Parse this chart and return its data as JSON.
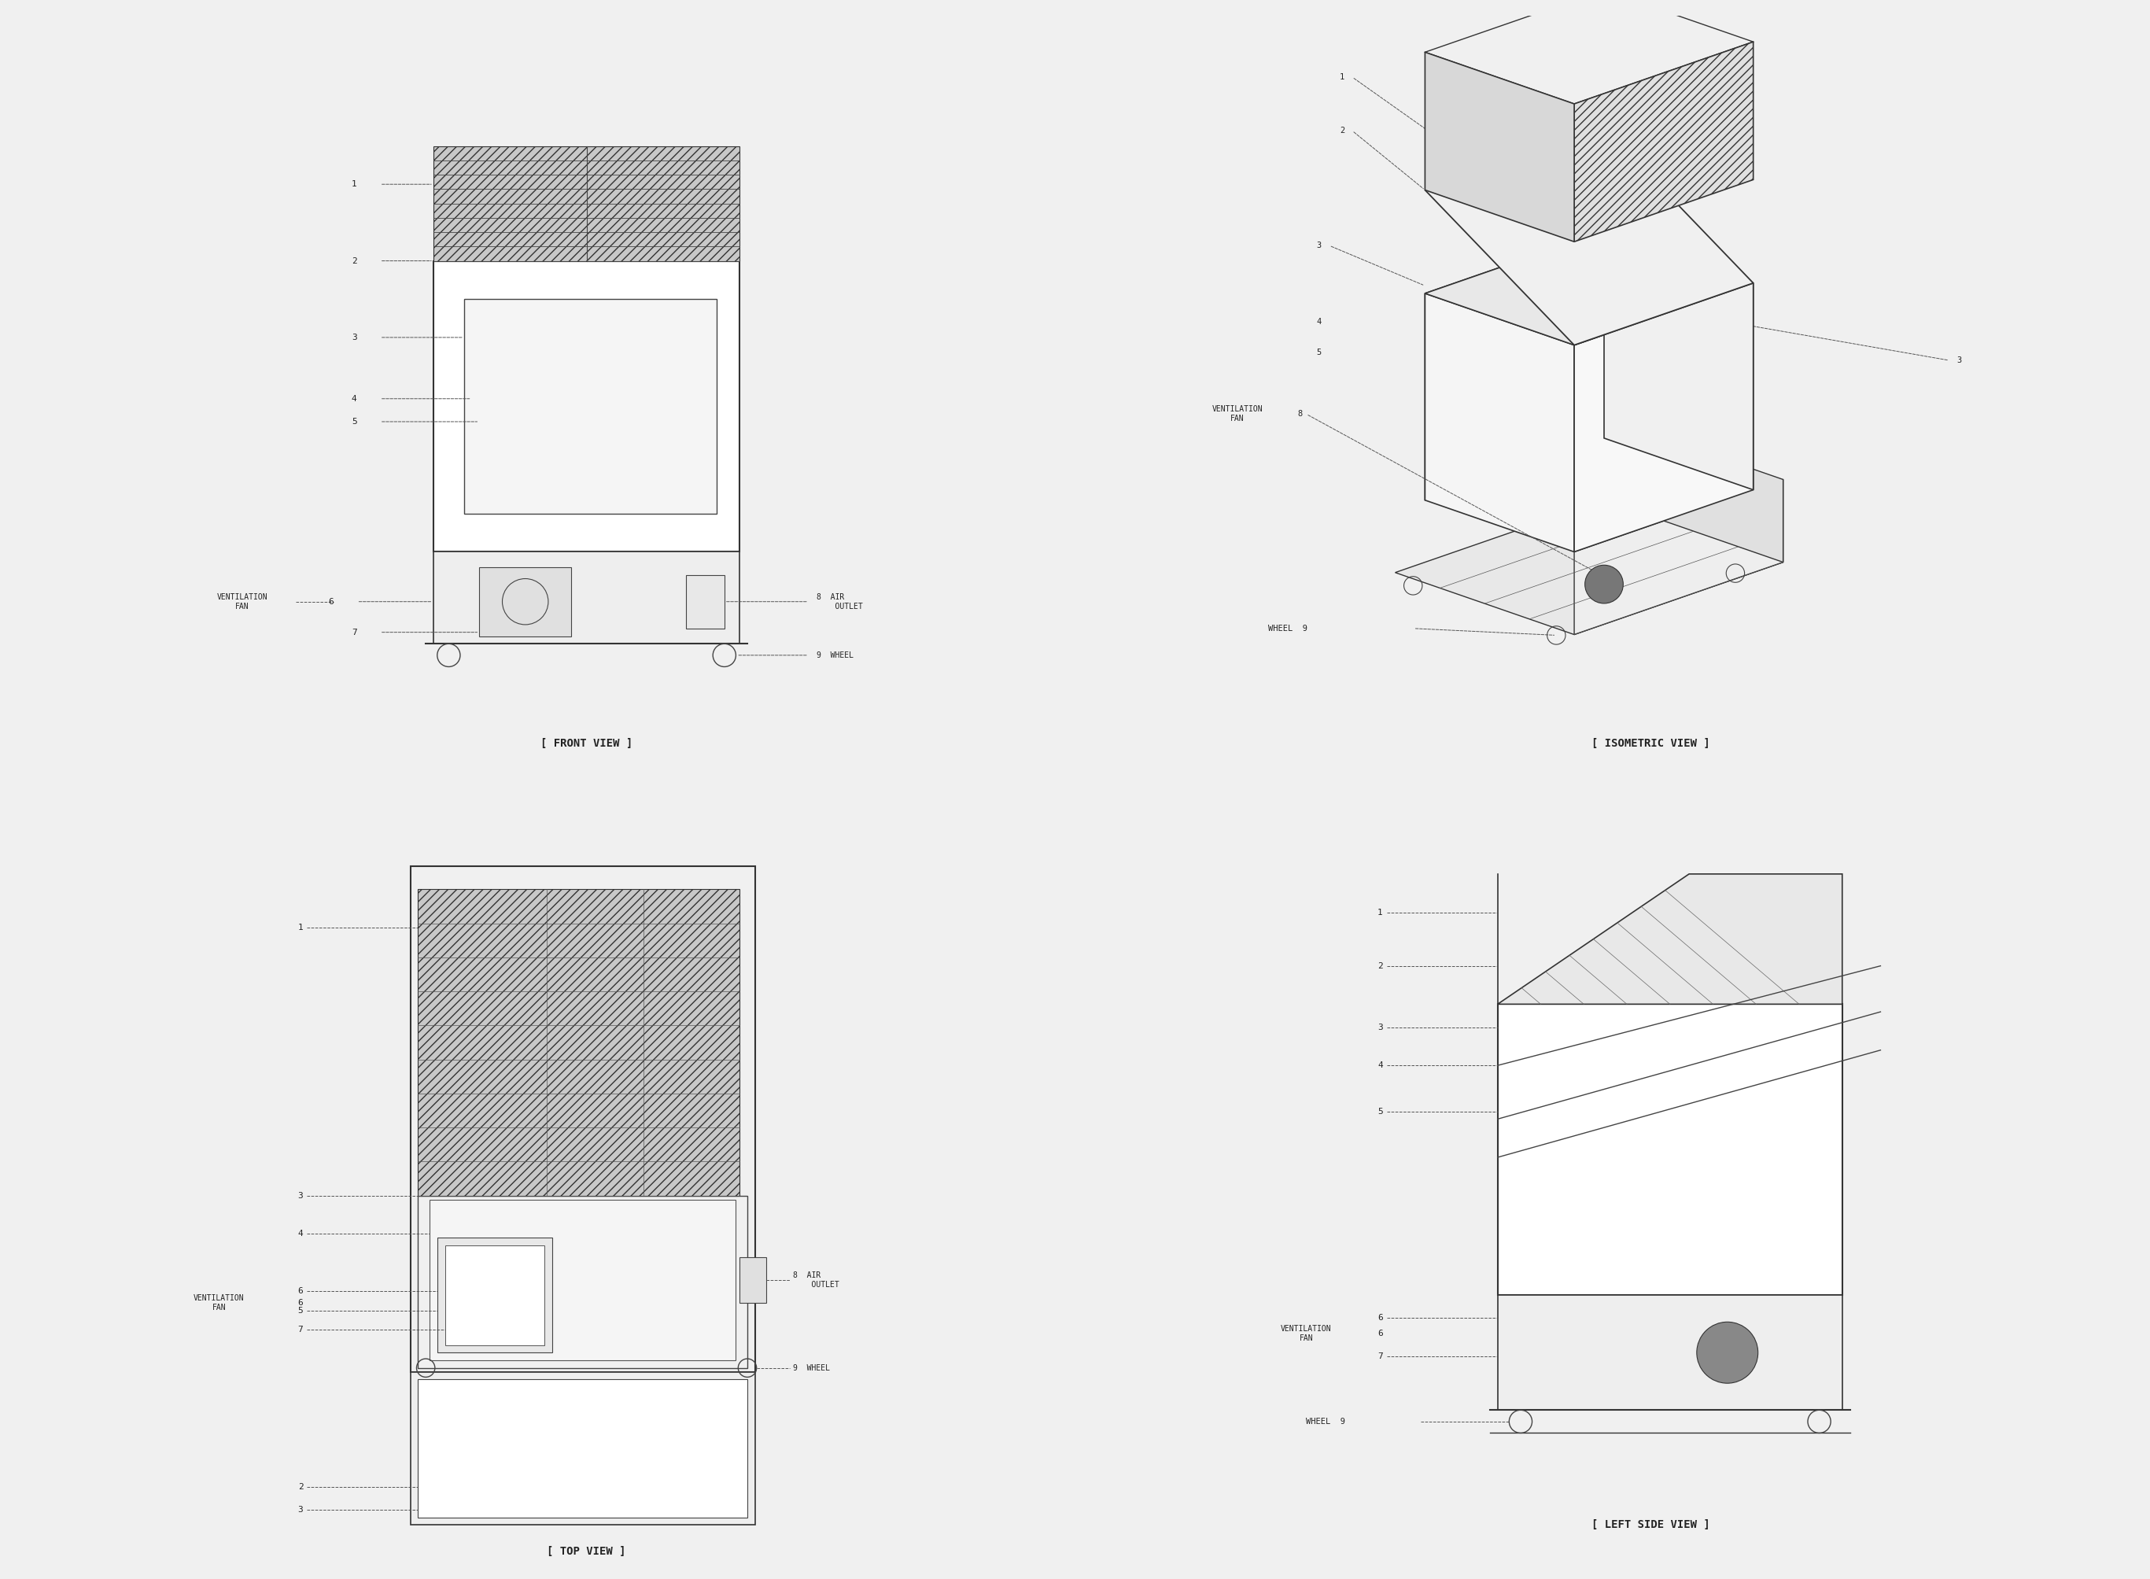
{
  "bg_color": "#f0f0f0",
  "panel_bg": "#ffffff",
  "line_color": "#333333",
  "label_color": "#333333",
  "title_color": "#222222",
  "panels": [
    "front",
    "isometric",
    "top",
    "left_side"
  ],
  "panel_titles": [
    "[ FRONT VIEW ]",
    "[ ISOMETRIC VIEW ]",
    "[ TOP VIEW ]",
    "[ LEFT SIDE VIEW ]"
  ],
  "font_family": "monospace"
}
